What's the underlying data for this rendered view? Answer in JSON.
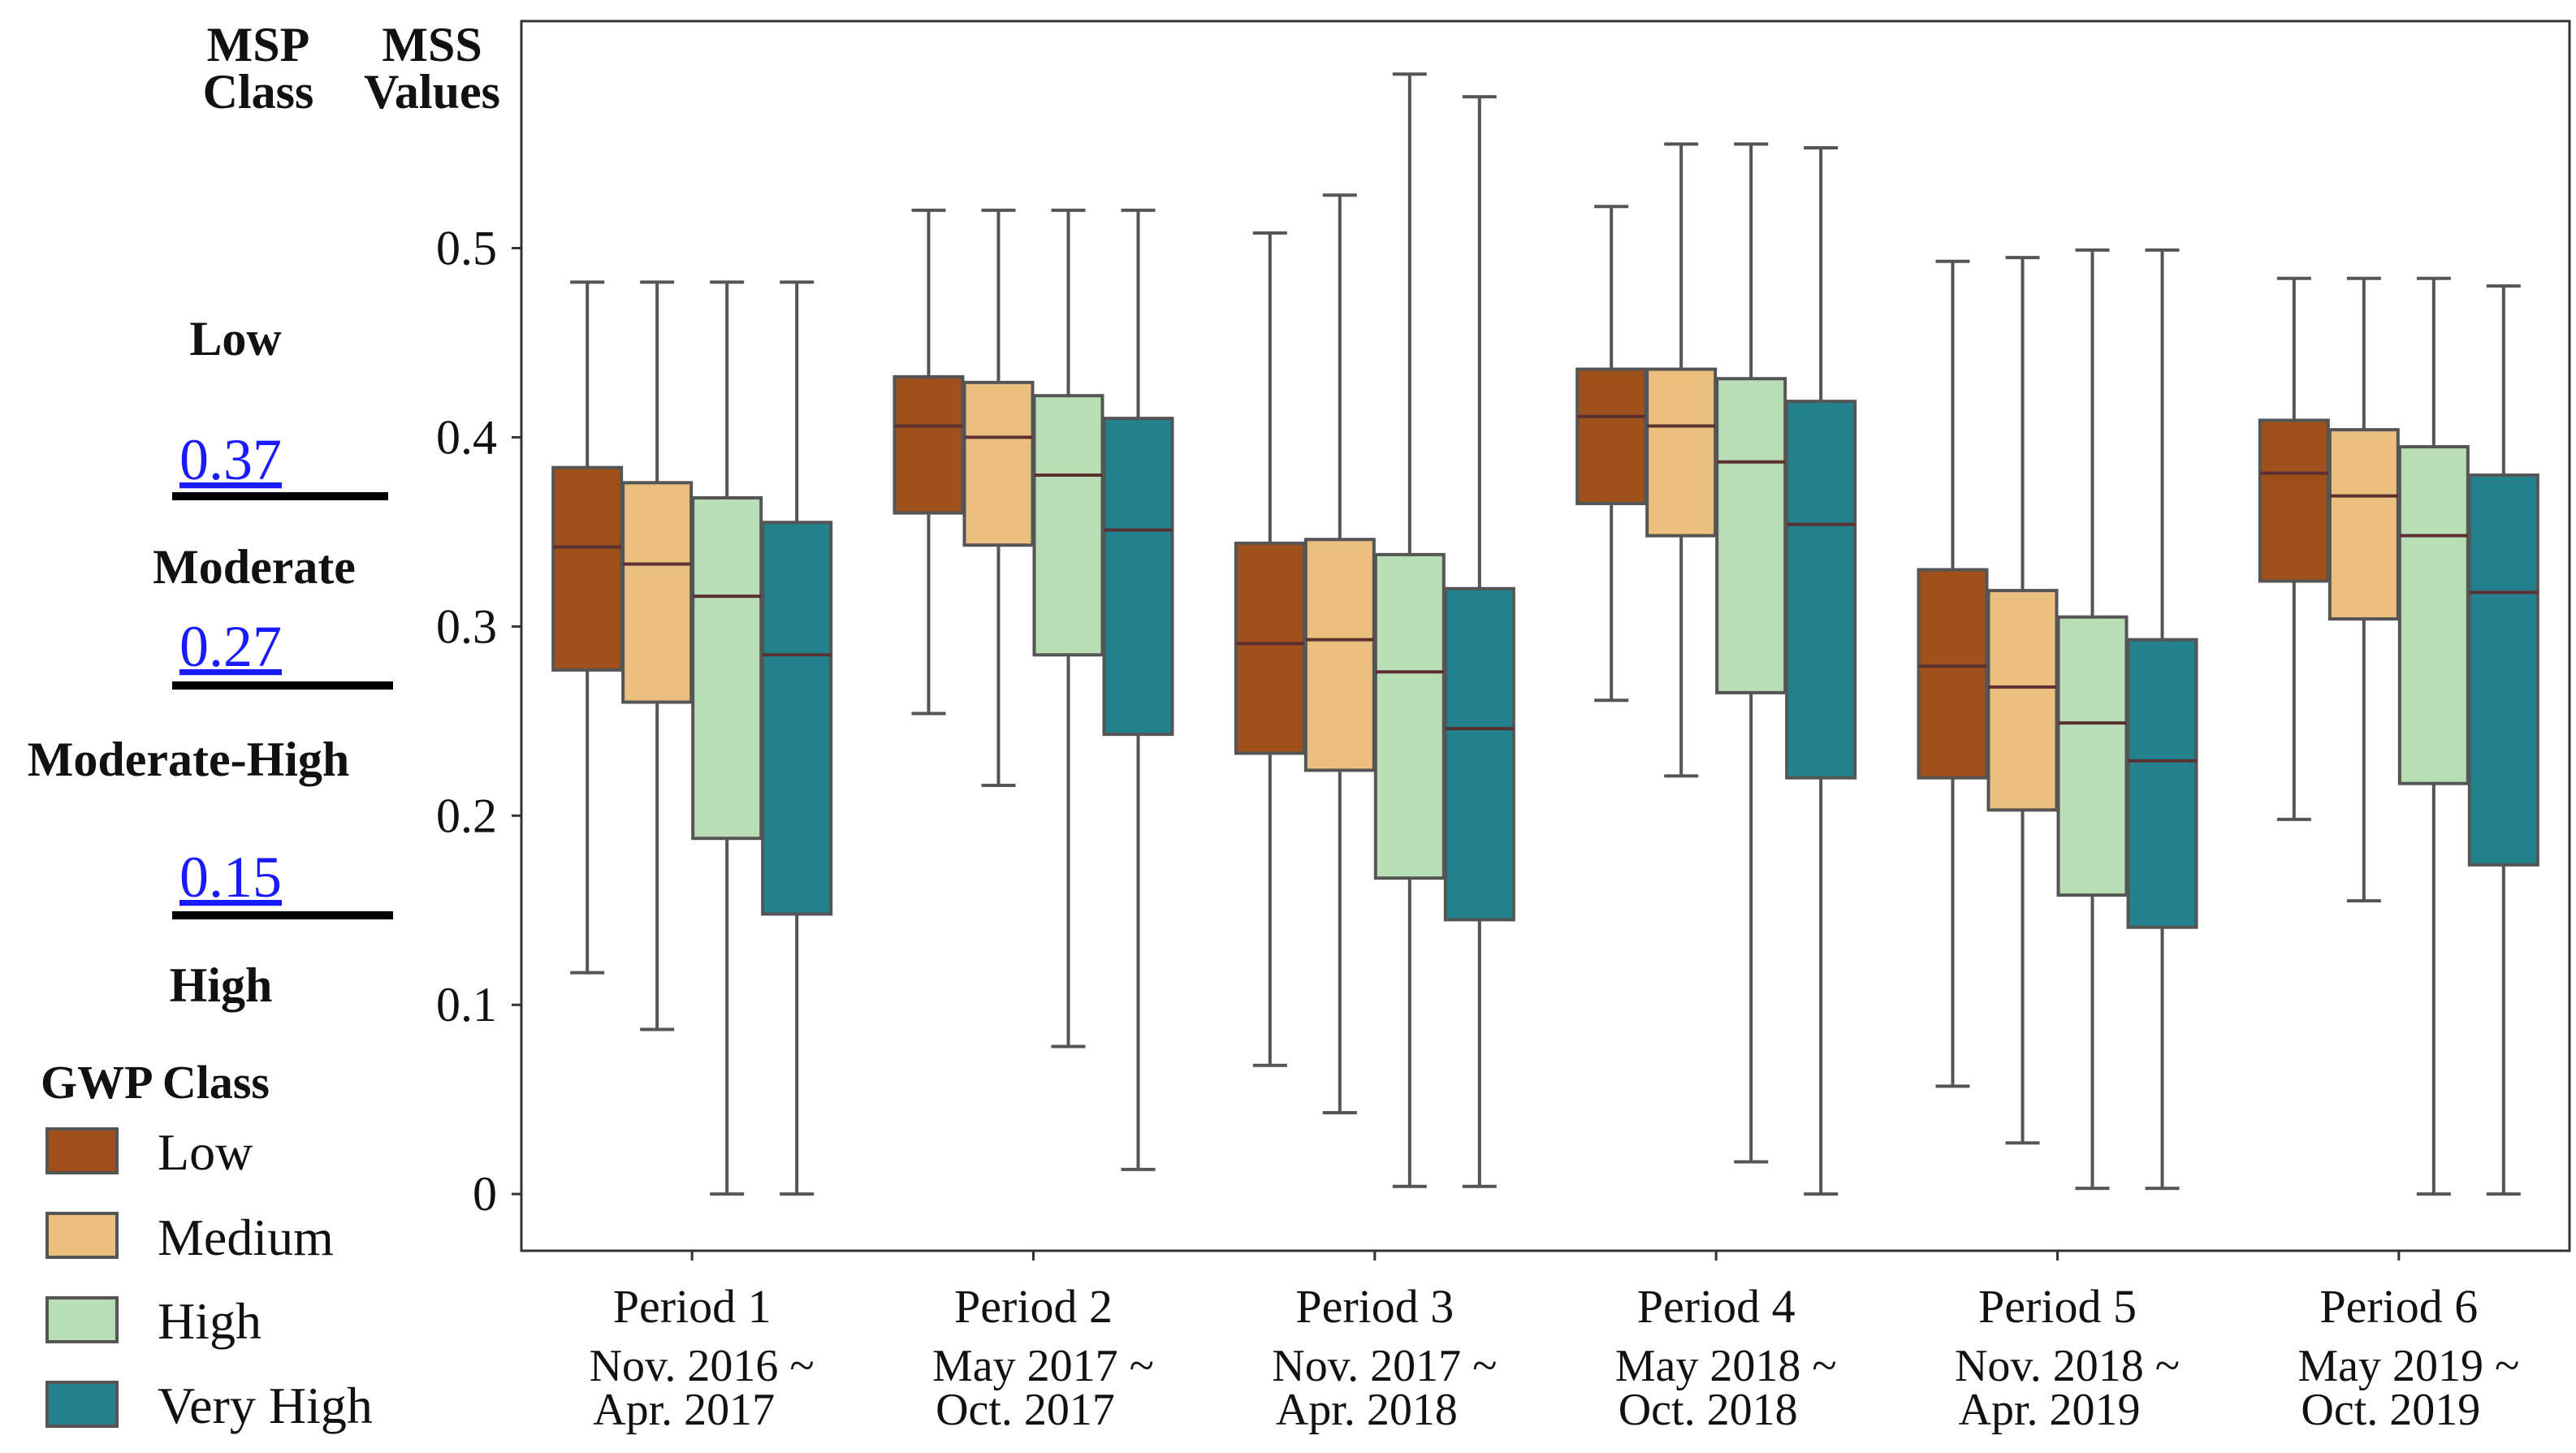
{
  "chart_data": {
    "type": "box",
    "ylim": [
      -0.03,
      0.62
    ],
    "y_ticks": [
      0,
      0.1,
      0.2,
      0.3,
      0.4,
      0.5
    ],
    "y_tick_labels": [
      "0",
      "0.1",
      "0.2",
      "0.3",
      "0.4",
      "0.5"
    ],
    "header": {
      "msp_class": [
        "MSP",
        "Class"
      ],
      "mss_values": [
        "MSS",
        "Values"
      ]
    },
    "msp_classes": [
      {
        "label": "Low"
      },
      {
        "label": "Moderate",
        "lower_threshold_label": "0.37"
      },
      {
        "label": "Moderate-High",
        "lower_threshold_label": "0.27"
      },
      {
        "label": "High",
        "lower_threshold_label": "0.15"
      }
    ],
    "legend": {
      "title": "GWP Class",
      "items": [
        {
          "label": "Low",
          "color": "#A0501A"
        },
        {
          "label": "Medium",
          "color": "#EBC07F"
        },
        {
          "label": "High",
          "color": "#B9DDB5"
        },
        {
          "label": "Very High",
          "color": "#23818E"
        }
      ]
    },
    "median_color": "#5a3030",
    "periods": [
      {
        "name": "Period 1",
        "dates": [
          "Nov. 2016 ~",
          "Apr. 2017"
        ],
        "boxes": [
          {
            "class": "Low",
            "min": 0.117,
            "q1": 0.277,
            "median": 0.342,
            "q3": 0.384,
            "max": 0.482
          },
          {
            "class": "Medium",
            "min": 0.087,
            "q1": 0.26,
            "median": 0.333,
            "q3": 0.376,
            "max": 0.482
          },
          {
            "class": "High",
            "min": 0.0,
            "q1": 0.188,
            "median": 0.316,
            "q3": 0.368,
            "max": 0.482
          },
          {
            "class": "Very High",
            "min": 0.0,
            "q1": 0.148,
            "median": 0.285,
            "q3": 0.355,
            "max": 0.482
          }
        ]
      },
      {
        "name": "Period 2",
        "dates": [
          "May 2017 ~",
          "Oct. 2017"
        ],
        "boxes": [
          {
            "class": "Low",
            "min": 0.254,
            "q1": 0.36,
            "median": 0.406,
            "q3": 0.432,
            "max": 0.52
          },
          {
            "class": "Medium",
            "min": 0.216,
            "q1": 0.343,
            "median": 0.4,
            "q3": 0.429,
            "max": 0.52
          },
          {
            "class": "High",
            "min": 0.078,
            "q1": 0.285,
            "median": 0.38,
            "q3": 0.422,
            "max": 0.52
          },
          {
            "class": "Very High",
            "min": 0.013,
            "q1": 0.243,
            "median": 0.351,
            "q3": 0.41,
            "max": 0.52
          }
        ]
      },
      {
        "name": "Period 3",
        "dates": [
          "Nov. 2017 ~",
          "Apr. 2018"
        ],
        "boxes": [
          {
            "class": "Low",
            "min": 0.068,
            "q1": 0.233,
            "median": 0.291,
            "q3": 0.344,
            "max": 0.508
          },
          {
            "class": "Medium",
            "min": 0.043,
            "q1": 0.224,
            "median": 0.293,
            "q3": 0.346,
            "max": 0.528
          },
          {
            "class": "High",
            "min": 0.004,
            "q1": 0.167,
            "median": 0.276,
            "q3": 0.338,
            "max": 0.592
          },
          {
            "class": "Very High",
            "min": 0.004,
            "q1": 0.145,
            "median": 0.246,
            "q3": 0.32,
            "max": 0.58
          }
        ]
      },
      {
        "name": "Period 4",
        "dates": [
          "May 2018 ~",
          "Oct. 2018"
        ],
        "boxes": [
          {
            "class": "Low",
            "min": 0.261,
            "q1": 0.365,
            "median": 0.411,
            "q3": 0.436,
            "max": 0.522
          },
          {
            "class": "Medium",
            "min": 0.221,
            "q1": 0.348,
            "median": 0.406,
            "q3": 0.436,
            "max": 0.555
          },
          {
            "class": "High",
            "min": 0.017,
            "q1": 0.265,
            "median": 0.387,
            "q3": 0.431,
            "max": 0.555
          },
          {
            "class": "Very High",
            "min": 0.0,
            "q1": 0.22,
            "median": 0.354,
            "q3": 0.419,
            "max": 0.553
          }
        ]
      },
      {
        "name": "Period 5",
        "dates": [
          "Nov. 2018 ~",
          "Apr. 2019"
        ],
        "boxes": [
          {
            "class": "Low",
            "min": 0.057,
            "q1": 0.22,
            "median": 0.279,
            "q3": 0.33,
            "max": 0.493
          },
          {
            "class": "Medium",
            "min": 0.027,
            "q1": 0.203,
            "median": 0.268,
            "q3": 0.319,
            "max": 0.495
          },
          {
            "class": "High",
            "min": 0.003,
            "q1": 0.158,
            "median": 0.249,
            "q3": 0.305,
            "max": 0.499
          },
          {
            "class": "Very High",
            "min": 0.003,
            "q1": 0.141,
            "median": 0.229,
            "q3": 0.293,
            "max": 0.499
          }
        ]
      },
      {
        "name": "Period 6",
        "dates": [
          "May 2019 ~",
          "Oct. 2019"
        ],
        "boxes": [
          {
            "class": "Low",
            "min": 0.198,
            "q1": 0.324,
            "median": 0.381,
            "q3": 0.409,
            "max": 0.484
          },
          {
            "class": "Medium",
            "min": 0.155,
            "q1": 0.304,
            "median": 0.369,
            "q3": 0.404,
            "max": 0.484
          },
          {
            "class": "High",
            "min": 0.0,
            "q1": 0.217,
            "median": 0.348,
            "q3": 0.395,
            "max": 0.484
          },
          {
            "class": "Very High",
            "min": 0.0,
            "q1": 0.174,
            "median": 0.318,
            "q3": 0.38,
            "max": 0.48
          }
        ]
      }
    ]
  }
}
